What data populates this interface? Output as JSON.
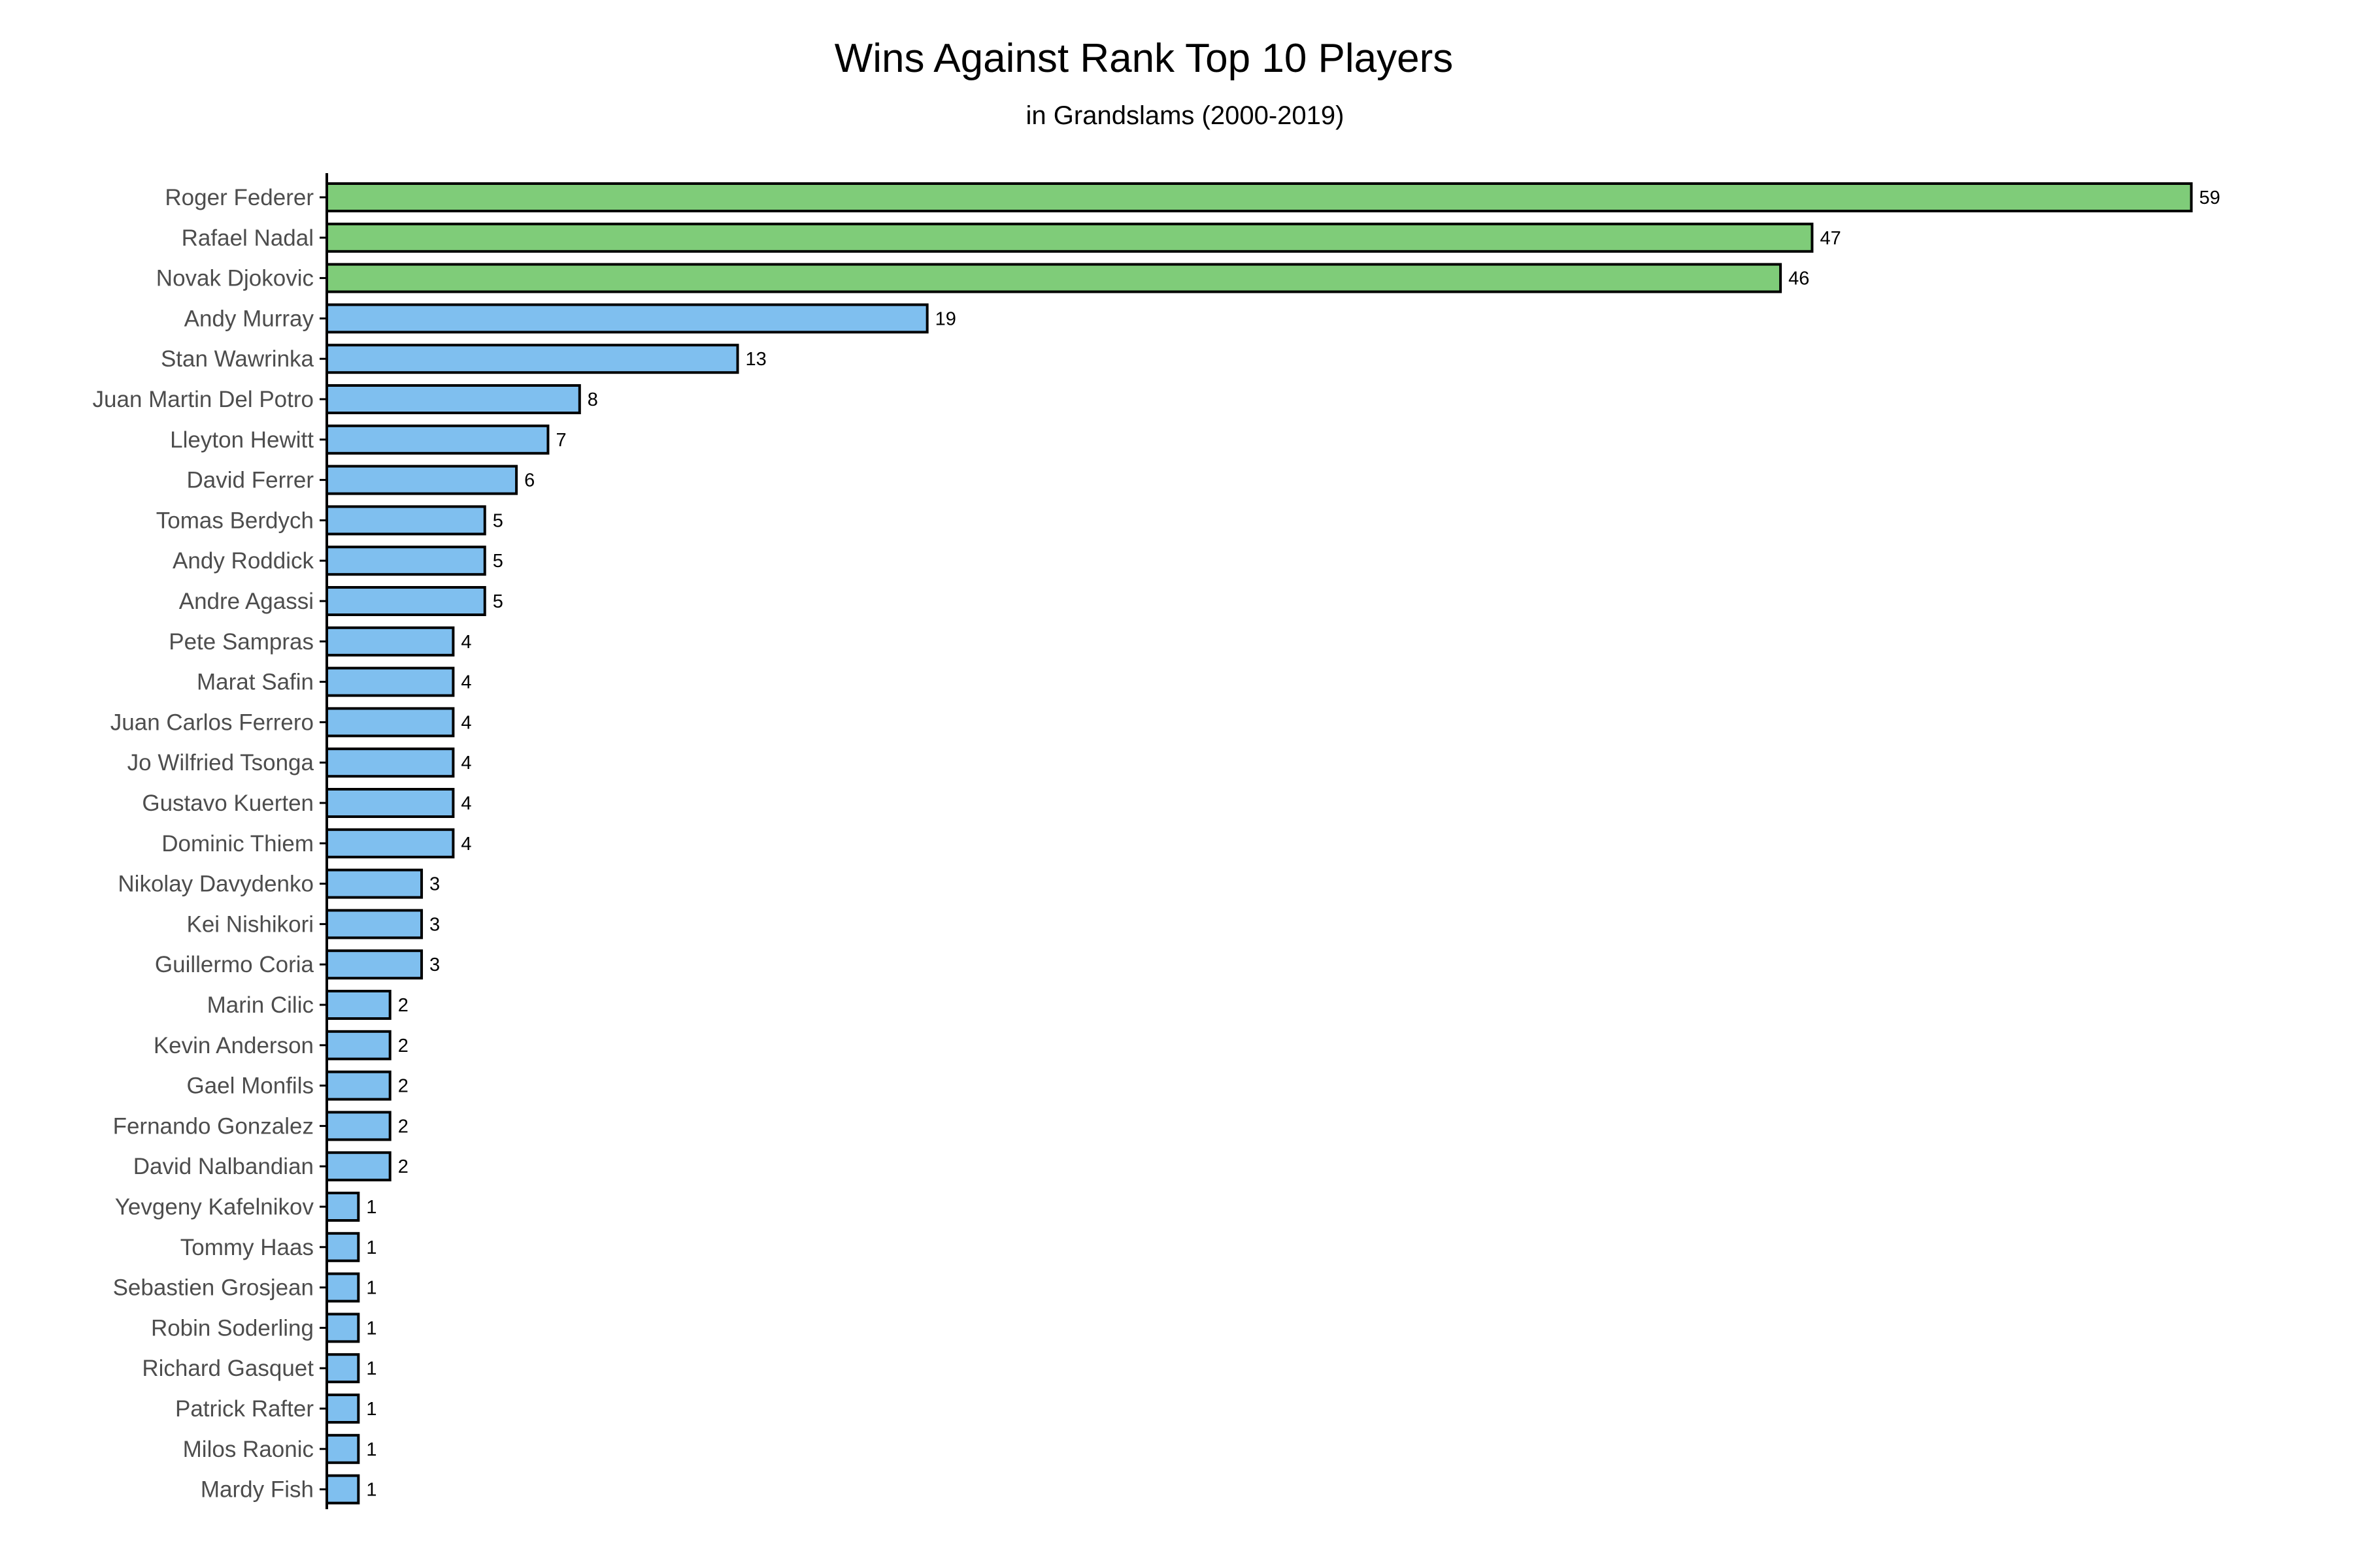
{
  "chart_data": {
    "type": "bar",
    "orientation": "horizontal",
    "title": "Wins Against Rank Top 10 Players",
    "subtitle": "in Grandslams (2000-2019)",
    "xlabel": "",
    "ylabel": "",
    "grid": false,
    "xlim": [
      0,
      60
    ],
    "categories": [
      "Roger Federer",
      "Rafael Nadal",
      "Novak Djokovic",
      "Andy Murray",
      "Stan Wawrinka",
      "Juan Martin Del Potro",
      "Lleyton Hewitt",
      "David Ferrer",
      "Tomas Berdych",
      "Andy Roddick",
      "Andre Agassi",
      "Pete Sampras",
      "Marat Safin",
      "Juan Carlos Ferrero",
      "Jo Wilfried Tsonga",
      "Gustavo Kuerten",
      "Dominic Thiem",
      "Nikolay Davydenko",
      "Kei Nishikori",
      "Guillermo Coria",
      "Marin Cilic",
      "Kevin Anderson",
      "Gael Monfils",
      "Fernando Gonzalez",
      "David Nalbandian",
      "Yevgeny Kafelnikov",
      "Tommy Haas",
      "Sebastien Grosjean",
      "Robin Soderling",
      "Richard Gasquet",
      "Patrick Rafter",
      "Milos Raonic",
      "Mardy Fish"
    ],
    "values": [
      59,
      47,
      46,
      19,
      13,
      8,
      7,
      6,
      5,
      5,
      5,
      4,
      4,
      4,
      4,
      4,
      4,
      3,
      3,
      3,
      2,
      2,
      2,
      2,
      2,
      1,
      1,
      1,
      1,
      1,
      1,
      1,
      1
    ],
    "highlight_count": 3,
    "colors": {
      "highlight": "#7fcc79",
      "default": "#7fbfef",
      "outline": "#000000"
    }
  }
}
